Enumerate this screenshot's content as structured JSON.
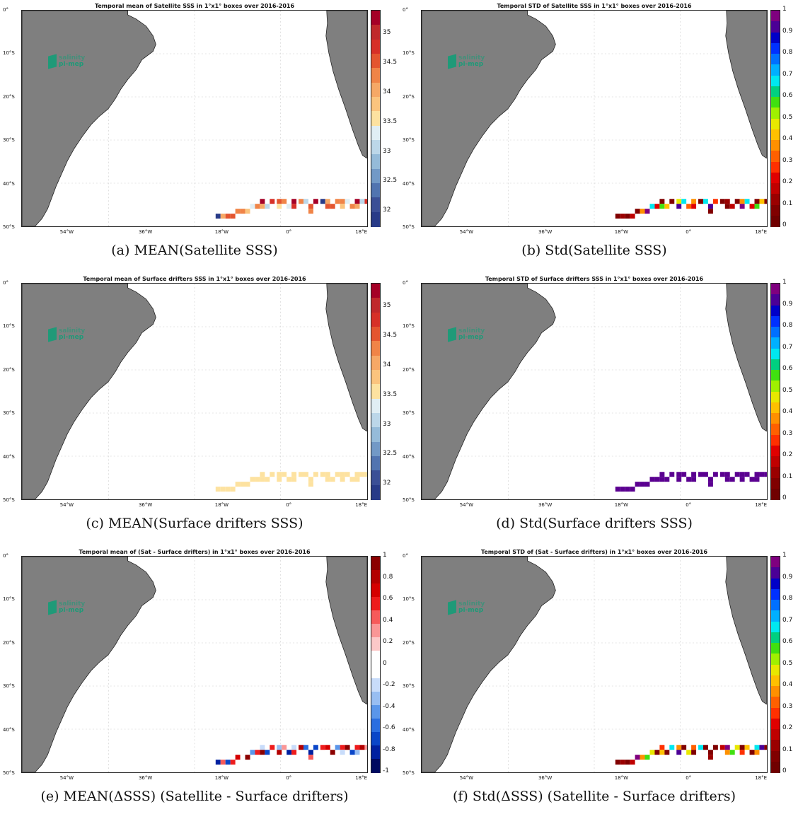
{
  "map_meta": {
    "lat_labels": [
      "0°",
      "10°S",
      "20°S",
      "30°S",
      "40°S",
      "50°S"
    ],
    "lon_labels": [
      "54°W",
      "36°W",
      "18°W",
      "0°",
      "18°E"
    ],
    "land_color": "#7f7f7f",
    "grid": true,
    "logo_line1": "salinity",
    "logo_line2": "pi-mep"
  },
  "panels": [
    {
      "title": "Temporal mean of Satellite SSS in 1°x1° boxes over 2016-2016",
      "caption": "(a) MEAN(Satellite SSS)",
      "colormap": "rdylbu",
      "colorbar_ticks": [
        "35",
        "34.5",
        "34",
        "33.5",
        "33",
        "32.5",
        "32"
      ],
      "colorbar_range": [
        31.75,
        35.4
      ]
    },
    {
      "title": "Temporal STD of Satellite SSS in 1°x1° boxes over 2016-2016",
      "caption": "(b) Std(Satellite SSS)",
      "colormap": "jet",
      "colorbar_ticks": [
        "1",
        "0.9",
        "0.8",
        "0.7",
        "0.6",
        "0.5",
        "0.4",
        "0.3",
        "0.2",
        "0.1",
        "0"
      ],
      "colorbar_range": [
        0,
        1
      ]
    },
    {
      "title": "Temporal mean of Surface drifters SSS in 1°x1° boxes over 2016-2016",
      "caption": "(c) MEAN(Surface drifters SSS)",
      "colormap": "rdylbu",
      "colorbar_ticks": [
        "35",
        "34.5",
        "34",
        "33.5",
        "33",
        "32.5",
        "32"
      ],
      "colorbar_range": [
        31.75,
        35.4
      ]
    },
    {
      "title": "Temporal STD of Surface drifters SSS in 1°x1° boxes over 2016-2016",
      "caption": "(d) Std(Surface drifters SSS)",
      "colormap": "jet",
      "colorbar_ticks": [
        "1",
        "0.9",
        "0.8",
        "0.7",
        "0.6",
        "0.5",
        "0.4",
        "0.3",
        "0.2",
        "0.1",
        "0"
      ],
      "colorbar_range": [
        0,
        1
      ]
    },
    {
      "title": "Temporal mean of (Sat - Surface drifters) in 1°x1° boxes over 2016-2016",
      "caption": "(e) MEAN(ΔSSS) (Satellite - Surface drifters)",
      "colormap": "bwr",
      "colorbar_ticks": [
        "1",
        "0.8",
        "0.6",
        "0.4",
        "0.2",
        "0",
        "-0.2",
        "-0.4",
        "-0.6",
        "-0.8",
        "-1"
      ],
      "colorbar_range": [
        -1,
        1
      ]
    },
    {
      "title": "Temporal STD of (Sat - Surface drifters) in 1°x1° boxes over 2016-2016",
      "caption": "(f) Std(ΔSSS) (Satellite - Surface drifters)",
      "colormap": "jet",
      "colorbar_ticks": [
        "1",
        "0.9",
        "0.8",
        "0.7",
        "0.6",
        "0.5",
        "0.4",
        "0.3",
        "0.2",
        "0.1",
        "0"
      ],
      "colorbar_range": [
        0,
        1
      ]
    }
  ]
}
